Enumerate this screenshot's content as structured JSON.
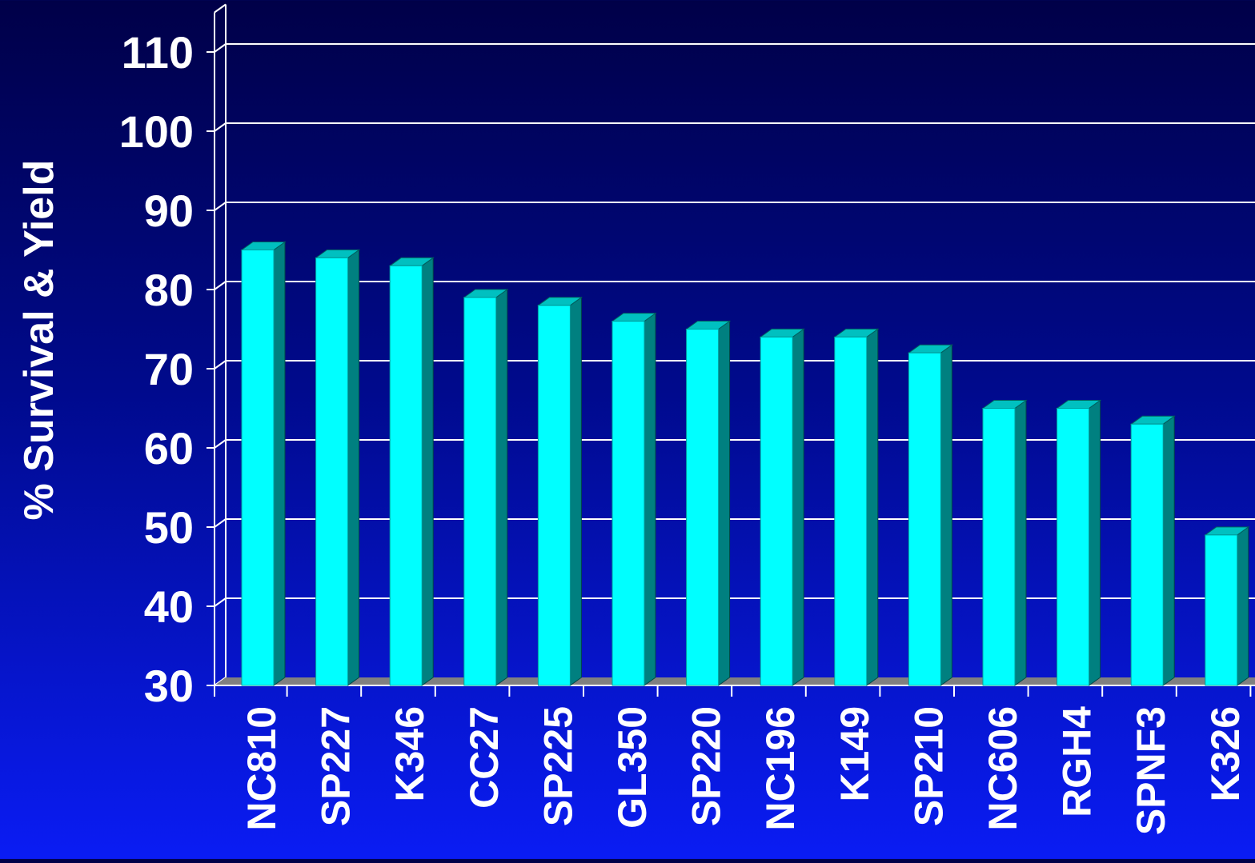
{
  "chart_data": {
    "type": "bar",
    "title": "",
    "xlabel": "",
    "ylabel": "% Survival & Yield",
    "categories": [
      "NC810",
      "SP227",
      "K346",
      "CC27",
      "SP225",
      "GL350",
      "SP220",
      "NC196",
      "K149",
      "SP210",
      "NC606",
      "RGH4",
      "SPNF3",
      "K326"
    ],
    "values": [
      85,
      84,
      83,
      79,
      78,
      76,
      75,
      74,
      74,
      72,
      65,
      65,
      63,
      49
    ],
    "yticks": [
      "30",
      "40",
      "50",
      "60",
      "70",
      "80",
      "90",
      "100",
      "110"
    ],
    "ylim": [
      30,
      115
    ],
    "grid": true,
    "legend": "none",
    "colors": {
      "bar_front": "#00ffff",
      "bar_side": "#008080",
      "bar_top": "#00c0c0",
      "floor": "#808080",
      "grid": "#ffffff"
    }
  }
}
